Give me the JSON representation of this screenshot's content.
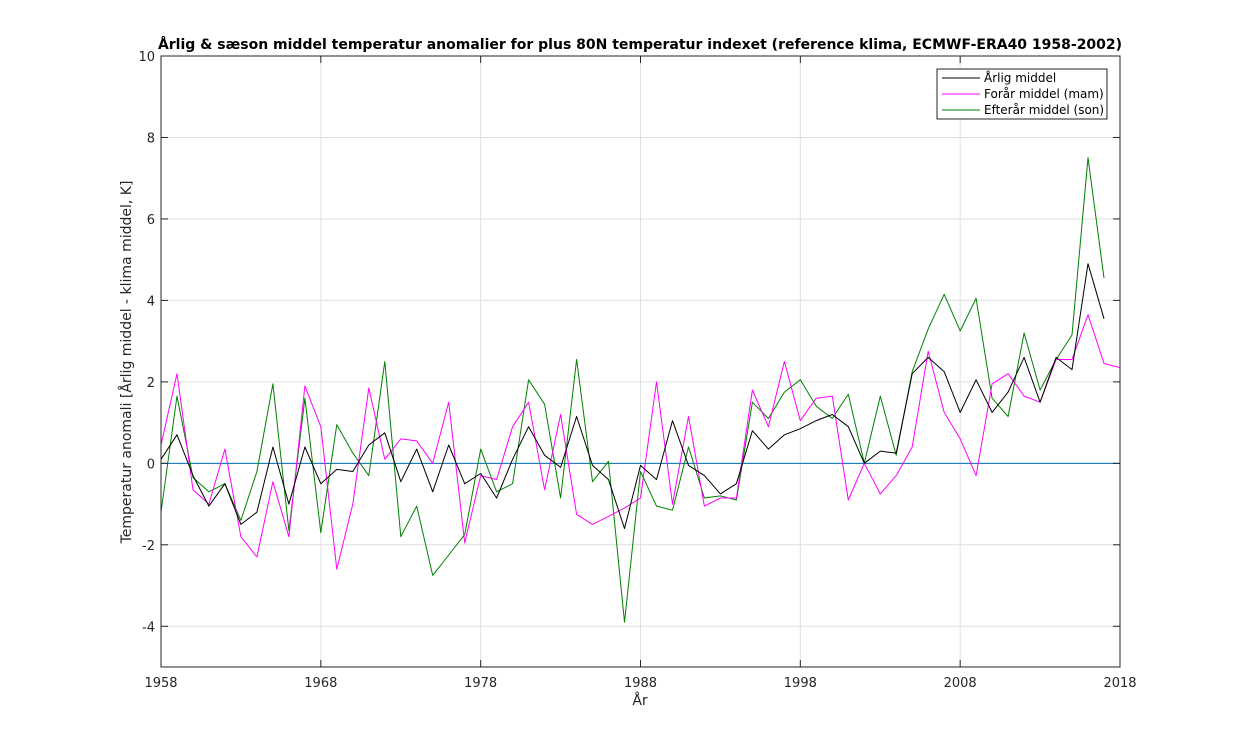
{
  "chart_data": {
    "type": "line",
    "title": "Årlig & sæson middel temperatur anomalier for plus 80N temperatur indexet (reference klima, ECMWF-ERA40 1958-2002)",
    "xlabel": "År",
    "ylabel": "Temperatur anomali [Årlig middel - klima middel, K]",
    "xlim": [
      1958,
      2018
    ],
    "ylim": [
      -5,
      10
    ],
    "xticks": [
      1958,
      1968,
      1978,
      1988,
      1998,
      2008,
      2018
    ],
    "yticks": [
      -4,
      -2,
      0,
      2,
      4,
      6,
      8,
      10
    ],
    "grid": true,
    "legend_position": "top-right",
    "reference_line": {
      "y": 0,
      "color": "#0072BD"
    },
    "x": [
      1958,
      1959,
      1960,
      1961,
      1962,
      1963,
      1964,
      1965,
      1966,
      1967,
      1968,
      1969,
      1970,
      1971,
      1972,
      1973,
      1974,
      1975,
      1976,
      1977,
      1978,
      1979,
      1980,
      1981,
      1982,
      1983,
      1984,
      1985,
      1986,
      1987,
      1988,
      1989,
      1990,
      1991,
      1992,
      1993,
      1994,
      1995,
      1996,
      1997,
      1998,
      1999,
      2000,
      2001,
      2002,
      2003,
      2004,
      2005,
      2006,
      2007,
      2008,
      2009,
      2010,
      2011,
      2012,
      2013,
      2014,
      2015,
      2016,
      2017,
      2018
    ],
    "series": [
      {
        "name": "Årlig middel",
        "color": "#000000",
        "values": [
          0.1,
          0.7,
          -0.3,
          -1.05,
          -0.5,
          -1.5,
          -1.2,
          0.4,
          -1.0,
          0.4,
          -0.5,
          -0.15,
          -0.2,
          0.45,
          0.75,
          -0.45,
          0.35,
          -0.7,
          0.45,
          -0.5,
          -0.25,
          -0.85,
          0.1,
          0.9,
          0.2,
          -0.1,
          1.15,
          -0.05,
          -0.4,
          -1.6,
          -0.05,
          -0.4,
          1.05,
          -0.05,
          -0.3,
          -0.75,
          -0.5,
          0.8,
          0.35,
          0.7,
          0.85,
          1.05,
          1.2,
          0.9,
          0.0,
          0.3,
          0.25,
          2.2,
          2.6,
          2.25,
          1.25,
          2.05,
          1.25,
          1.75,
          2.6,
          1.5,
          2.6,
          2.3,
          4.9,
          3.55,
          null
        ]
      },
      {
        "name": "Forår middel (mam)",
        "color": "#FF00FF",
        "values": [
          0.45,
          2.2,
          -0.65,
          -1.0,
          0.35,
          -1.8,
          -2.3,
          -0.45,
          -1.8,
          1.9,
          0.9,
          -2.6,
          -1.0,
          1.85,
          0.1,
          0.6,
          0.55,
          0.0,
          1.5,
          -1.95,
          -0.3,
          -0.4,
          0.9,
          1.5,
          -0.65,
          1.2,
          -1.25,
          -1.5,
          -1.3,
          -1.1,
          -0.85,
          2.0,
          -1.0,
          1.15,
          -1.05,
          -0.85,
          -0.85,
          1.8,
          0.9,
          2.5,
          1.05,
          1.6,
          1.65,
          -0.9,
          0.0,
          -0.75,
          -0.3,
          0.4,
          2.75,
          1.25,
          0.6,
          -0.3,
          1.95,
          2.2,
          1.65,
          1.5,
          2.55,
          2.55,
          3.65,
          2.45,
          2.35
        ]
      },
      {
        "name": "Efterår middel (son)",
        "color": "#008000",
        "values": [
          -1.2,
          1.65,
          -0.35,
          -0.7,
          -0.5,
          -1.4,
          -0.2,
          1.95,
          -1.65,
          1.6,
          -1.7,
          0.95,
          0.25,
          -0.3,
          2.5,
          -1.8,
          -1.05,
          -2.75,
          -2.25,
          -1.75,
          0.35,
          -0.7,
          -0.5,
          2.05,
          1.45,
          -0.85,
          2.55,
          -0.45,
          0.05,
          -3.9,
          -0.2,
          -1.05,
          -1.15,
          0.4,
          -0.85,
          -0.8,
          -0.9,
          1.5,
          1.1,
          1.75,
          2.05,
          1.4,
          1.1,
          1.7,
          0.0,
          1.65,
          0.2,
          2.25,
          3.3,
          4.15,
          3.25,
          4.05,
          1.6,
          1.15,
          3.2,
          1.8,
          2.55,
          3.15,
          7.5,
          4.55,
          null
        ]
      }
    ]
  }
}
